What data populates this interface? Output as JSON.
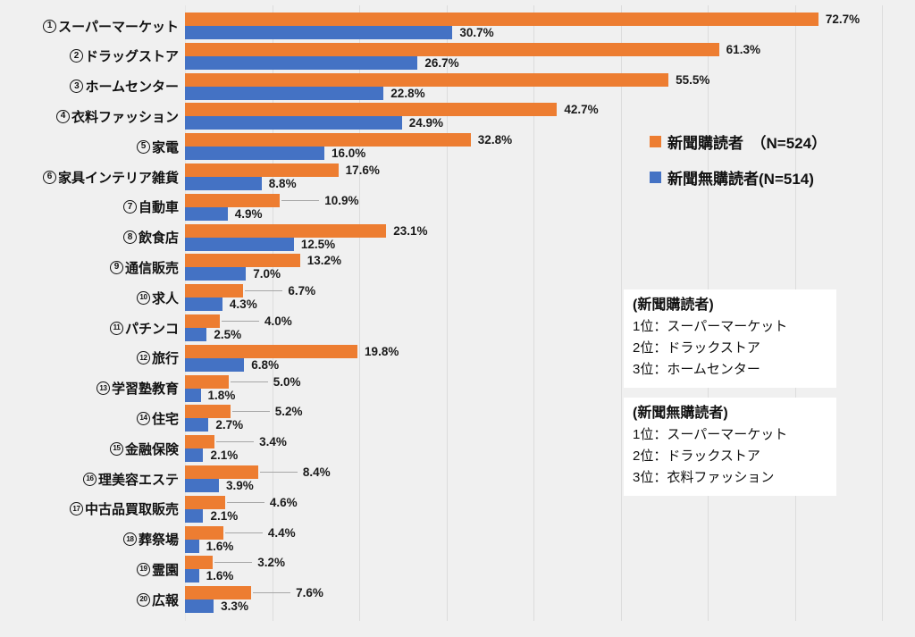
{
  "chart_data": {
    "type": "bar",
    "orientation": "horizontal",
    "title": "",
    "categories": [
      "①スーパーマーケット",
      "②ドラッグストア",
      "③ホームセンター",
      "④衣料ファッション",
      "⑤家電",
      "⑥家具インテリア雑貨",
      "⑦自動車",
      "⑧飲食店",
      "⑨通信販売",
      "⑩求人",
      "⑪パチンコ",
      "⑫旅行",
      "⑬学習塾教育",
      "⑭住宅",
      "⑮金融保険",
      "⑯理美容エステ",
      "⑰中古品買取販売",
      "⑱葬祭場",
      "⑲霊園",
      "⑳広報"
    ],
    "series": [
      {
        "name": "新聞購読者　（N=524）",
        "color": "#ED7D31",
        "values": [
          72.7,
          61.3,
          55.5,
          42.7,
          32.8,
          17.6,
          10.9,
          23.1,
          13.2,
          6.7,
          4.0,
          19.8,
          5.0,
          5.2,
          3.4,
          8.4,
          4.6,
          4.4,
          3.2,
          7.6
        ]
      },
      {
        "name": "新聞無購読者(N=514)",
        "color": "#4472C4",
        "values": [
          30.7,
          26.7,
          22.8,
          24.9,
          16.0,
          8.8,
          4.9,
          12.5,
          7.0,
          4.3,
          2.5,
          6.8,
          1.8,
          2.7,
          2.1,
          3.9,
          2.1,
          1.6,
          1.6,
          3.3
        ]
      }
    ],
    "value_suffix": "%",
    "xlim": [
      0,
      82
    ],
    "gridlines": {
      "interval": 10,
      "max": 80,
      "visible": true
    },
    "legend_position": "inside-upper-right",
    "data_labels": true
  },
  "category_rows": [
    {
      "num": "1",
      "name": "スーパーマーケット"
    },
    {
      "num": "2",
      "name": "ドラッグストア"
    },
    {
      "num": "3",
      "name": "ホームセンター"
    },
    {
      "num": "4",
      "name": "衣料ファッション"
    },
    {
      "num": "5",
      "name": "家電"
    },
    {
      "num": "6",
      "name": "家具インテリア雑貨"
    },
    {
      "num": "7",
      "name": "自動車"
    },
    {
      "num": "8",
      "name": "飲食店"
    },
    {
      "num": "9",
      "name": "通信販売"
    },
    {
      "num": "10",
      "name": "求人"
    },
    {
      "num": "11",
      "name": "パチンコ"
    },
    {
      "num": "12",
      "name": "旅行"
    },
    {
      "num": "13",
      "name": "学習塾教育"
    },
    {
      "num": "14",
      "name": "住宅"
    },
    {
      "num": "15",
      "name": "金融保険"
    },
    {
      "num": "16",
      "name": "理美容エステ"
    },
    {
      "num": "17",
      "name": "中古品買取販売"
    },
    {
      "num": "18",
      "name": "葬祭場"
    },
    {
      "num": "19",
      "name": "霊園"
    },
    {
      "num": "20",
      "name": "広報"
    }
  ],
  "legend": {
    "items": [
      {
        "label": "新聞購読者　（N=524）",
        "color": "#ED7D31"
      },
      {
        "label": "新聞無購読者(N=514)",
        "color": "#4472C4"
      }
    ]
  },
  "annotations": [
    {
      "title": "(新聞購読者)",
      "lines": [
        "1位：スーパーマーケット",
        "2位：ドラックストア",
        "3位：ホームセンター"
      ]
    },
    {
      "title": "(新聞無購読者)",
      "lines": [
        "1位：スーパーマーケット",
        "2位：ドラックストア",
        "3位：衣料ファッション"
      ]
    }
  ],
  "colors": {
    "background": "#F0F0F0",
    "gridline": "#DCDCDC",
    "series_orange": "#ED7D31",
    "series_blue": "#4472C4",
    "leader_line": "#A6A6A6",
    "text": "#1A1A1A",
    "annotation_background": "#FFFFFF"
  }
}
